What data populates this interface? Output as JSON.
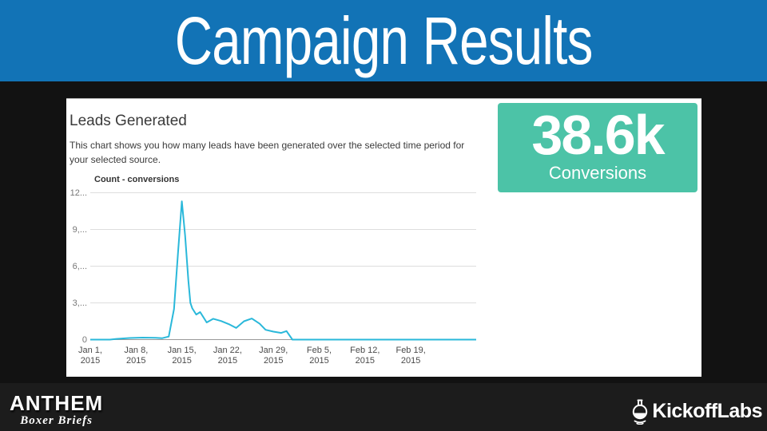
{
  "header": {
    "title": "Campaign Results",
    "bg_color": "#1273B6"
  },
  "panel": {
    "title": "Leads Generated",
    "description": "This chart shows you how many leads have been generated over the selected time period for your selected source.",
    "legend": "Count - conversions"
  },
  "metric_card": {
    "value": "38.6k",
    "label": "Conversions",
    "bg_color": "#4CC3A7"
  },
  "footer": {
    "anthem": {
      "title": "ANTHEM",
      "subtitle": "Boxer Briefs"
    },
    "kickofflabs": {
      "title": "KickoffLabs"
    }
  },
  "chart_data": {
    "type": "line",
    "title": "Count - conversions",
    "xlabel": "",
    "ylabel": "",
    "ylim": [
      0,
      12000
    ],
    "grid": "horizontal",
    "legend_position": "top-left",
    "line_color": "#2AB8DA",
    "axis_color": "#999999",
    "grid_color": "#dddddd",
    "y_ticks": [
      12000,
      9000,
      6000,
      3000,
      0
    ],
    "y_tick_labels": [
      "12...",
      "9,...",
      "6,...",
      "3,...",
      "0"
    ],
    "x_days_range": [
      0,
      59
    ],
    "x_tick_days": [
      0,
      7,
      14,
      21,
      28,
      35,
      42,
      49
    ],
    "x_tick_labels": [
      {
        "l1": "Jan 1,",
        "l2": "2015"
      },
      {
        "l1": "Jan 8,",
        "l2": "2015"
      },
      {
        "l1": "Jan 15,",
        "l2": "2015"
      },
      {
        "l1": "Jan 22,",
        "l2": "2015"
      },
      {
        "l1": "Jan 29,",
        "l2": "2015"
      },
      {
        "l1": "Feb 5,",
        "l2": "2015"
      },
      {
        "l1": "Feb 12,",
        "l2": "2015"
      },
      {
        "l1": "Feb 19,",
        "l2": "2015"
      }
    ],
    "points": [
      [
        0,
        0
      ],
      [
        3,
        0
      ],
      [
        4,
        60
      ],
      [
        6,
        130
      ],
      [
        8,
        160
      ],
      [
        10,
        150
      ],
      [
        11,
        120
      ],
      [
        12,
        250
      ],
      [
        12.8,
        2500
      ],
      [
        13.4,
        7000
      ],
      [
        14,
        11300
      ],
      [
        14.5,
        8500
      ],
      [
        15,
        4800
      ],
      [
        15.3,
        3000
      ],
      [
        15.6,
        2550
      ],
      [
        16.2,
        2050
      ],
      [
        16.8,
        2250
      ],
      [
        17.8,
        1400
      ],
      [
        18.8,
        1700
      ],
      [
        20,
        1520
      ],
      [
        21.3,
        1230
      ],
      [
        22.3,
        950
      ],
      [
        23.5,
        1500
      ],
      [
        24.7,
        1720
      ],
      [
        25.9,
        1300
      ],
      [
        26.8,
        800
      ],
      [
        28,
        650
      ],
      [
        29.2,
        550
      ],
      [
        30,
        700
      ],
      [
        30.9,
        0
      ],
      [
        34,
        0
      ],
      [
        45,
        0
      ],
      [
        59,
        0
      ]
    ]
  }
}
